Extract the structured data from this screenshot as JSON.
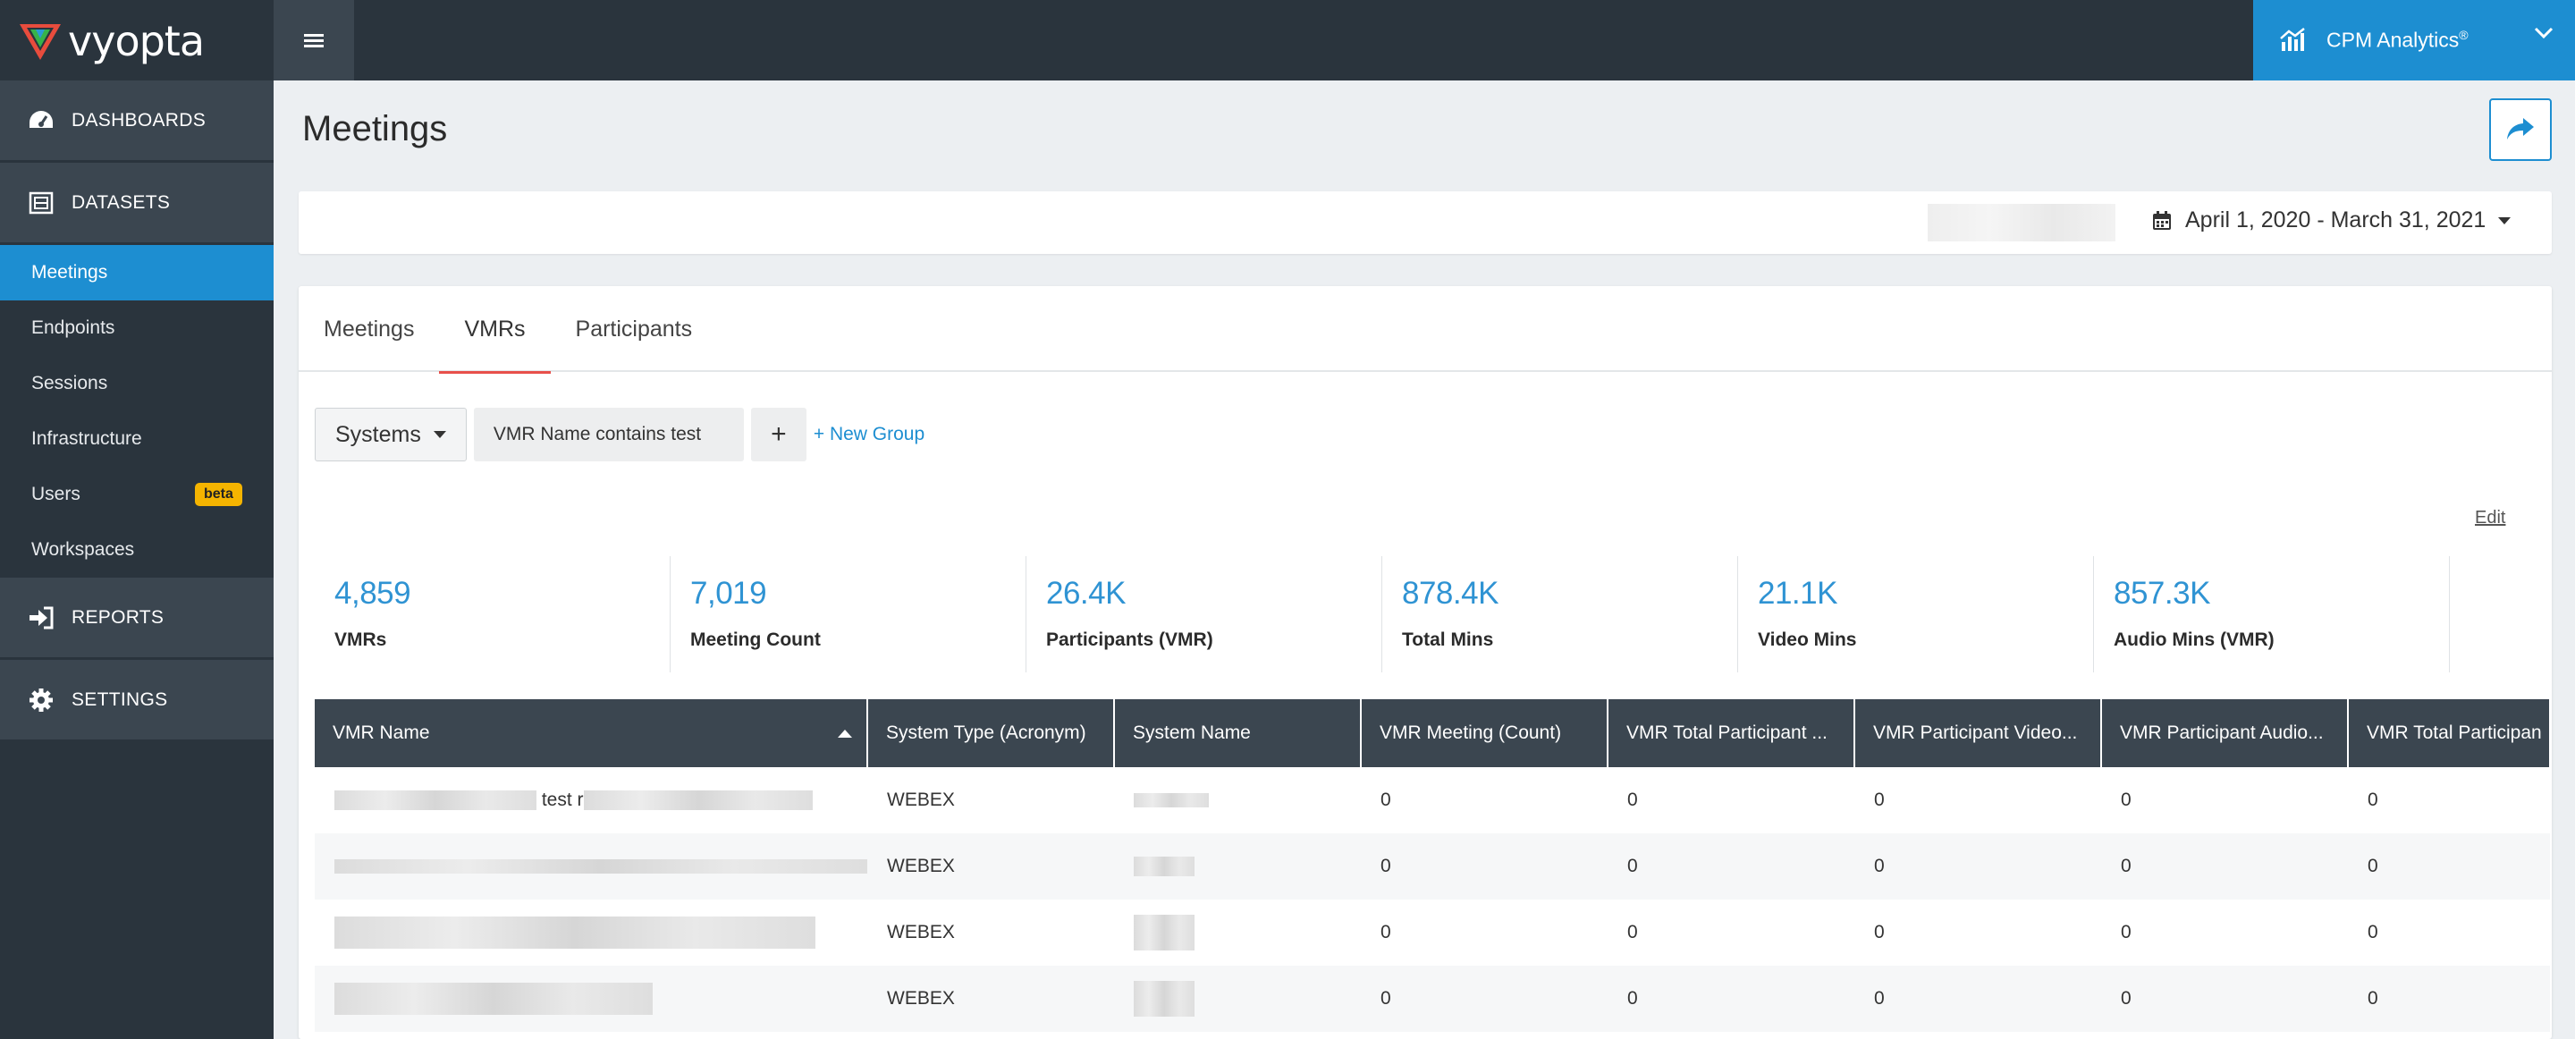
{
  "brand": {
    "name": "vyopta"
  },
  "product": {
    "label": "CPM Analytics",
    "mark": "®"
  },
  "sidebar": {
    "sections": [
      {
        "label": "DASHBOARDS"
      },
      {
        "label": "DATASETS"
      },
      {
        "label": "REPORTS"
      },
      {
        "label": "SETTINGS"
      }
    ],
    "items": [
      {
        "label": "Meetings",
        "active": true
      },
      {
        "label": "Endpoints"
      },
      {
        "label": "Sessions"
      },
      {
        "label": "Infrastructure"
      },
      {
        "label": "Users",
        "badge": "beta"
      },
      {
        "label": "Workspaces"
      }
    ]
  },
  "page": {
    "title": "Meetings"
  },
  "filter": {
    "date_range": "April 1, 2020 - March 31, 2021"
  },
  "tabs": [
    {
      "label": "Meetings"
    },
    {
      "label": "VMRs",
      "active": true
    },
    {
      "label": "Participants"
    }
  ],
  "query": {
    "systems_label": "Systems",
    "condition": "VMR Name contains test",
    "add_label": "+",
    "new_group_label": "+ New Group"
  },
  "edit_label": "Edit",
  "kpis": [
    {
      "value": "4,859",
      "label": "VMRs"
    },
    {
      "value": "7,019",
      "label": "Meeting Count"
    },
    {
      "value": "26.4K",
      "label": "Participants (VMR)"
    },
    {
      "value": "878.4K",
      "label": "Total Mins"
    },
    {
      "value": "21.1K",
      "label": "Video Mins"
    },
    {
      "value": "857.3K",
      "label": "Audio Mins (VMR)"
    }
  ],
  "table": {
    "columns": [
      "VMR Name",
      "System Type (Acronym)",
      "System Name",
      "VMR Meeting (Count)",
      "VMR Total Participant ...",
      "VMR Participant Video...",
      "VMR Participant Audio...",
      "VMR Total Participan"
    ],
    "rows": [
      {
        "name_visible": "test r",
        "system_type": "WEBEX",
        "meeting_count": "0",
        "total_participant": "0",
        "participant_video": "0",
        "participant_audio": "0",
        "total_participan": "0"
      },
      {
        "name_visible": "",
        "system_type": "WEBEX",
        "meeting_count": "0",
        "total_participant": "0",
        "participant_video": "0",
        "participant_audio": "0",
        "total_participan": "0"
      },
      {
        "name_visible": "",
        "system_type": "WEBEX",
        "meeting_count": "0",
        "total_participant": "0",
        "participant_video": "0",
        "participant_audio": "0",
        "total_participan": "0"
      },
      {
        "name_visible": "",
        "system_type": "WEBEX",
        "meeting_count": "0",
        "total_participant": "0",
        "participant_video": "0",
        "participant_audio": "0",
        "total_participan": "0"
      }
    ]
  },
  "colors": {
    "accent": "#1d8ed1",
    "nav_dark": "#2a343d",
    "nav_section": "#3b4650",
    "tab_underline": "#e8504a",
    "kpi_value": "#2f93d3",
    "beta_badge": "#f5b400"
  }
}
